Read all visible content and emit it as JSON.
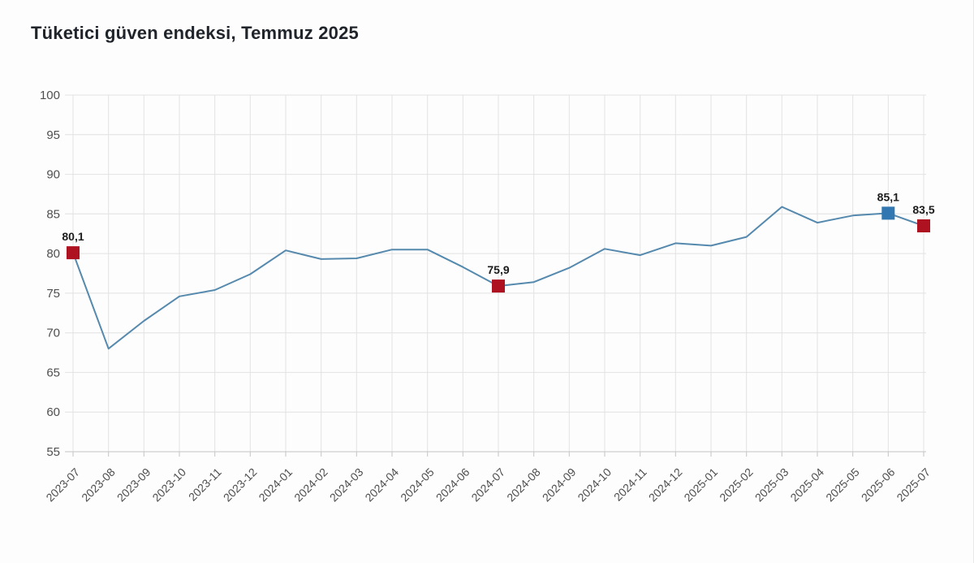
{
  "title": "Tüketici güven endeksi, Temmuz 2025",
  "chart_data": {
    "type": "line",
    "title": "Tüketici güven endeksi, Temmuz 2025",
    "series_name": "Tüketici güven endeksi",
    "x": [
      "2023-07",
      "2023-08",
      "2023-09",
      "2023-10",
      "2023-11",
      "2023-12",
      "2024-01",
      "2024-02",
      "2024-03",
      "2024-04",
      "2024-05",
      "2024-06",
      "2024-07",
      "2024-08",
      "2024-09",
      "2024-10",
      "2024-11",
      "2024-12",
      "2025-01",
      "2025-02",
      "2025-03",
      "2025-04",
      "2025-05",
      "2025-06",
      "2025-07"
    ],
    "values": [
      80.1,
      68.0,
      71.5,
      74.6,
      75.4,
      77.4,
      80.4,
      79.3,
      79.4,
      80.5,
      80.5,
      78.3,
      75.9,
      76.4,
      78.2,
      80.6,
      79.8,
      81.3,
      81.0,
      82.1,
      85.9,
      83.9,
      84.8,
      85.1,
      83.5
    ],
    "ylim": [
      55,
      100
    ],
    "ytick_step": 5,
    "yticks": [
      55,
      60,
      65,
      70,
      75,
      80,
      85,
      90,
      95,
      100
    ],
    "grid": true,
    "legend_position": "none",
    "xlabel": "",
    "ylabel": "",
    "annotations": [
      {
        "index": 0,
        "label": "80,1",
        "marker_color": "#ae1220"
      },
      {
        "index": 12,
        "label": "75,9",
        "marker_color": "#ae1220"
      },
      {
        "index": 23,
        "label": "85,1",
        "marker_color": "#3178b2"
      },
      {
        "index": 24,
        "label": "83,5",
        "marker_color": "#ae1220"
      }
    ],
    "colors": {
      "line": "#5589ad",
      "grid": "#e2e2e2",
      "axis": "#c4c4c4",
      "tick_label": "#4f4f4f",
      "annotation_text": "#1b1b1b",
      "highlight_red": "#ae1220",
      "highlight_blue": "#3178b2",
      "background": "#fdfdfd",
      "title": "#20242b"
    }
  }
}
